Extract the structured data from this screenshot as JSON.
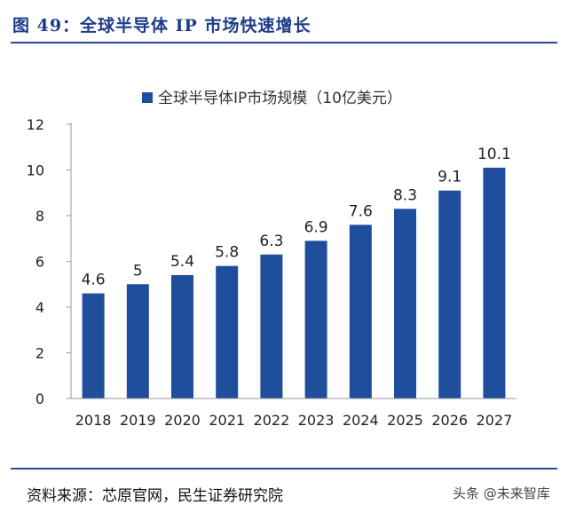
{
  "figure_title": "图 49：全球半导体 IP 市场快速增长",
  "source": "资料来源：芯原官网，民生证券研究院",
  "watermark": "头条 @未来智库",
  "colors": {
    "bar": "#1f4e9c",
    "axis": "#9a9a9a",
    "title": "#1f3c88"
  },
  "chart_data": {
    "type": "bar",
    "categories": [
      "2018",
      "2019",
      "2020",
      "2021",
      "2022",
      "2023",
      "2024",
      "2025",
      "2026",
      "2027"
    ],
    "series": [
      {
        "name": "全球半导体IP市场规模（10亿美元）",
        "values": [
          4.6,
          5,
          5.4,
          5.8,
          6.3,
          6.9,
          7.6,
          8.3,
          9.1,
          10.1
        ],
        "labels": [
          "4.6",
          "5",
          "5.4",
          "5.8",
          "6.3",
          "6.9",
          "7.6",
          "8.3",
          "9.1",
          "10.1"
        ]
      }
    ],
    "ylim": [
      0,
      12
    ],
    "yticks": [
      0,
      2,
      4,
      6,
      8,
      10,
      12
    ],
    "grid": false,
    "legend_position": "top"
  }
}
